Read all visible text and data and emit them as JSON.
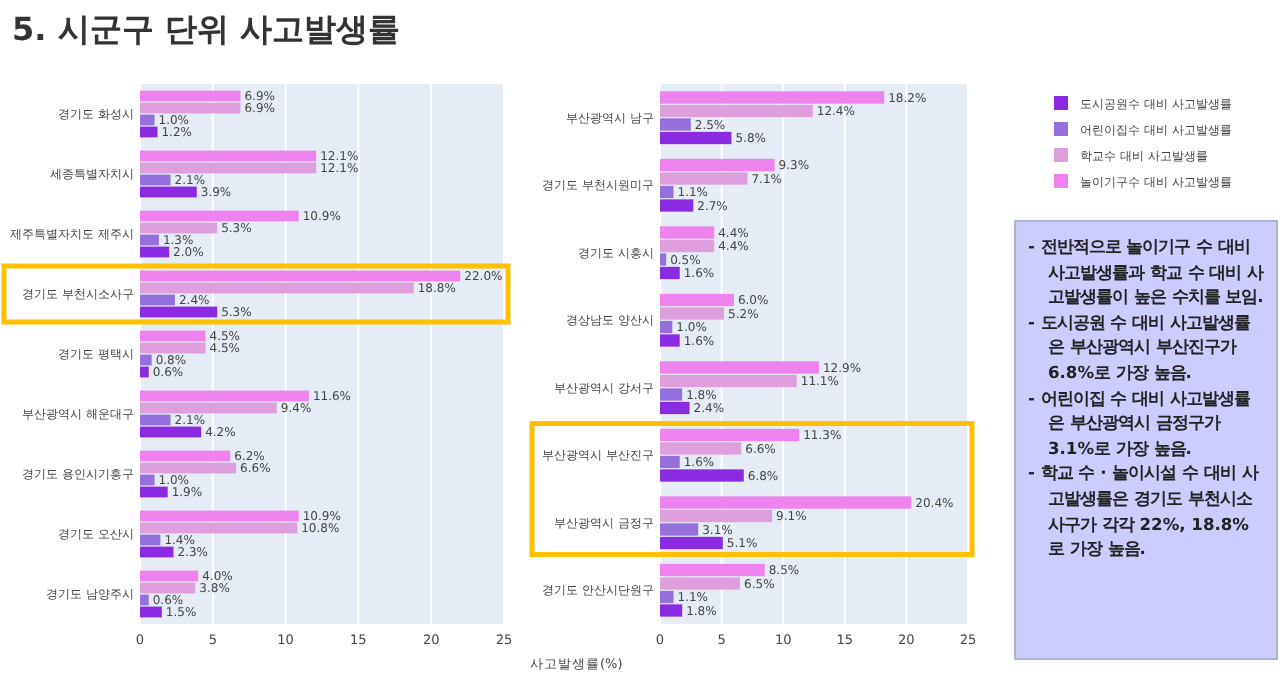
{
  "chart_data": [
    {
      "type": "bar",
      "title": "5. 시군구 단위 사고발생률",
      "orientation": "horizontal",
      "categories": [
        "경기도 화성시",
        "세종특별자치시",
        "제주특별자치도 제주시",
        "경기도 부천시소사구",
        "경기도 평택시",
        "부산광역시 해운대구",
        "경기도 용인시기흥구",
        "경기도 오산시",
        "경기도 남양주시"
      ],
      "series": [
        {
          "color": "#8a2be2",
          "values": [
            1.2,
            3.9,
            2.0,
            5.3,
            0.6,
            4.2,
            1.9,
            2.3,
            1.5
          ],
          "value_labels": [
            "1.2%",
            "3.9%",
            "2.0%",
            "5.3%",
            "0.6%",
            "4.2%",
            "1.9%",
            "2.3%",
            "1.5%"
          ]
        },
        {
          "color": "#9370db",
          "values": [
            1.0,
            2.1,
            1.3,
            2.4,
            0.8,
            2.1,
            1.0,
            1.4,
            0.6
          ],
          "value_labels": [
            "1.0%",
            "2.1%",
            "1.3%",
            "2.4%",
            "0.8%",
            "2.1%",
            "1.0%",
            "1.4%",
            "0.6%"
          ]
        },
        {
          "color": "#dda0dd",
          "values": [
            6.9,
            12.1,
            5.3,
            18.8,
            4.5,
            9.4,
            6.6,
            10.8,
            3.8
          ],
          "value_labels": [
            "6.9%",
            "12.1%",
            "5.3%",
            "18.8%",
            "4.5%",
            "9.4%",
            "6.6%",
            "10.8%",
            "3.8%"
          ]
        },
        {
          "color": "#ee82ee",
          "values": [
            6.9,
            12.1,
            10.9,
            22.0,
            4.5,
            11.6,
            6.2,
            10.9,
            4.0
          ],
          "value_labels": [
            "6.9%",
            "12.1%",
            "10.9%",
            "22.0%",
            "4.5%",
            "11.6%",
            "6.2%",
            "10.9%",
            "4.0%"
          ]
        }
      ],
      "xlim": [
        0,
        25
      ],
      "xticks": [
        0,
        5,
        10,
        15,
        20,
        25
      ],
      "grid": "x"
    },
    {
      "type": "bar",
      "orientation": "horizontal",
      "xlabel": "사고발생률(%)",
      "categories": [
        "부산광역시 남구",
        "경기도 부천시원미구",
        "경기도 시흥시",
        "경상남도 양산시",
        "부산광역시 강서구",
        "부산광역시 부산진구",
        "부산광역시 금정구",
        "경기도 안산시단원구"
      ],
      "series": [
        {
          "name": "도시공원수 대비 사고발생률",
          "color": "#8a2be2",
          "values": [
            5.8,
            2.7,
            1.6,
            1.6,
            2.4,
            6.8,
            5.1,
            1.8
          ],
          "value_labels": [
            "5.8%",
            "2.7%",
            "1.6%",
            "1.6%",
            "2.4%",
            "6.8%",
            "5.1%",
            "1.8%"
          ]
        },
        {
          "name": "어린이집수 대비 사고발생률",
          "color": "#9370db",
          "values": [
            2.5,
            1.1,
            0.5,
            1.0,
            1.8,
            1.6,
            3.1,
            1.1
          ],
          "value_labels": [
            "2.5%",
            "1.1%",
            "0.5%",
            "1.0%",
            "1.8%",
            "1.6%",
            "3.1%",
            "1.1%"
          ]
        },
        {
          "name": "학교수 대비 사고발생률",
          "color": "#dda0dd",
          "values": [
            12.4,
            7.1,
            4.4,
            5.2,
            11.1,
            6.6,
            9.1,
            6.5
          ],
          "value_labels": [
            "12.4%",
            "7.1%",
            "4.4%",
            "5.2%",
            "11.1%",
            "6.6%",
            "9.1%",
            "6.5%"
          ]
        },
        {
          "name": "놀이기구수 대비 사고발생률",
          "color": "#ee82ee",
          "values": [
            18.2,
            9.3,
            4.4,
            6.0,
            12.9,
            11.3,
            20.4,
            8.5
          ],
          "value_labels": [
            "18.2%",
            "9.3%",
            "4.4%",
            "6.0%",
            "12.9%",
            "11.3%",
            "20.4%",
            "8.5%"
          ]
        }
      ],
      "xlim": [
        0,
        25
      ],
      "xticks": [
        0,
        5,
        10,
        15,
        20,
        25
      ],
      "grid": "x",
      "legend": "right"
    },
    {
      "type": "other",
      "annotations": [
        "- 전반적으로 놀이기구 수 대비 사고발생률과 학교 수 대비 사고발생률이 높은 수치를 보임.",
        "- 도시공원 수 대비 사고발생률은 부산광역시 부산진구가 6.8%로 가장 높음.",
        "- 어린이집 수 대비 사고발생률은 부산광역시 금정구가 3.1%로 가장 높음.",
        "- 학교 수 · 놀이시설 수 대비 사고발생률은 경기도 부천시소사구가 각각 22%, 18.8%로 가장 높음."
      ]
    }
  ]
}
